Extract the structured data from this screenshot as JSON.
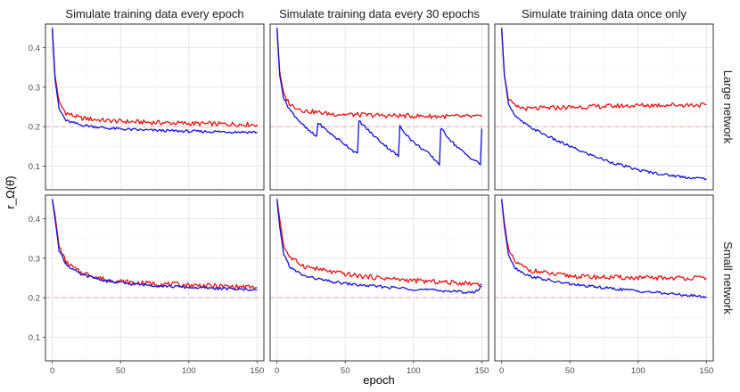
{
  "chart_data": {
    "type": "line",
    "xlabel": "epoch",
    "ylabel": "r_Ω(θ̂)",
    "xlim": [
      -5,
      155
    ],
    "ylim": [
      0.04,
      0.46
    ],
    "x_ticks": [
      0,
      50,
      100,
      150
    ],
    "x_tick_labels": [
      "0",
      "50",
      "100",
      "150"
    ],
    "y_ticks": [
      0.1,
      0.2,
      0.3,
      0.4
    ],
    "y_tick_labels": [
      "0.1",
      "0.2",
      "0.3",
      "0.4"
    ],
    "reference_line": {
      "y": 0.2,
      "color": "#f4a6a6",
      "style": "dashed"
    },
    "col_labels": [
      "Simulate training data every epoch",
      "Simulate training data every 30 epochs",
      "Simulate training data once only"
    ],
    "row_labels": [
      "Large network",
      "Small network"
    ],
    "series_colors": {
      "red": "#ee1111",
      "blue": "#1111dd"
    },
    "panels": [
      {
        "row": 0,
        "col": 0,
        "red": [
          [
            0,
            0.45
          ],
          [
            2,
            0.33
          ],
          [
            5,
            0.26
          ],
          [
            10,
            0.235
          ],
          [
            20,
            0.222
          ],
          [
            40,
            0.215
          ],
          [
            60,
            0.212
          ],
          [
            100,
            0.208
          ],
          [
            150,
            0.205
          ]
        ],
        "blue": [
          [
            0,
            0.45
          ],
          [
            2,
            0.32
          ],
          [
            5,
            0.245
          ],
          [
            10,
            0.215
          ],
          [
            20,
            0.205
          ],
          [
            40,
            0.196
          ],
          [
            60,
            0.192
          ],
          [
            100,
            0.188
          ],
          [
            150,
            0.186
          ]
        ]
      },
      {
        "row": 0,
        "col": 1,
        "red": [
          [
            0,
            0.45
          ],
          [
            2,
            0.34
          ],
          [
            5,
            0.28
          ],
          [
            10,
            0.255
          ],
          [
            20,
            0.24
          ],
          [
            40,
            0.232
          ],
          [
            80,
            0.228
          ],
          [
            120,
            0.226
          ],
          [
            150,
            0.225
          ]
        ],
        "blue": [
          [
            0,
            0.45
          ],
          [
            2,
            0.33
          ],
          [
            5,
            0.27
          ],
          [
            10,
            0.24
          ],
          [
            15,
            0.22
          ],
          [
            20,
            0.2
          ],
          [
            25,
            0.185
          ],
          [
            29,
            0.175
          ],
          [
            30,
            0.21
          ],
          [
            40,
            0.18
          ],
          [
            50,
            0.155
          ],
          [
            59,
            0.13
          ],
          [
            60,
            0.215
          ],
          [
            70,
            0.18
          ],
          [
            80,
            0.15
          ],
          [
            89,
            0.125
          ],
          [
            90,
            0.2
          ],
          [
            100,
            0.16
          ],
          [
            110,
            0.135
          ],
          [
            119,
            0.105
          ],
          [
            120,
            0.195
          ],
          [
            130,
            0.155
          ],
          [
            140,
            0.125
          ],
          [
            149,
            0.105
          ],
          [
            150,
            0.195
          ]
        ]
      },
      {
        "row": 0,
        "col": 2,
        "red": [
          [
            0,
            0.45
          ],
          [
            2,
            0.33
          ],
          [
            5,
            0.27
          ],
          [
            10,
            0.25
          ],
          [
            20,
            0.245
          ],
          [
            40,
            0.248
          ],
          [
            80,
            0.252
          ],
          [
            120,
            0.255
          ],
          [
            150,
            0.255
          ]
        ],
        "blue": [
          [
            0,
            0.45
          ],
          [
            2,
            0.33
          ],
          [
            5,
            0.26
          ],
          [
            10,
            0.225
          ],
          [
            20,
            0.2
          ],
          [
            40,
            0.165
          ],
          [
            60,
            0.135
          ],
          [
            80,
            0.11
          ],
          [
            100,
            0.09
          ],
          [
            120,
            0.078
          ],
          [
            140,
            0.07
          ],
          [
            150,
            0.068
          ]
        ]
      },
      {
        "row": 1,
        "col": 0,
        "red": [
          [
            0,
            0.45
          ],
          [
            2,
            0.41
          ],
          [
            5,
            0.33
          ],
          [
            10,
            0.29
          ],
          [
            20,
            0.265
          ],
          [
            40,
            0.245
          ],
          [
            60,
            0.238
          ],
          [
            100,
            0.232
          ],
          [
            150,
            0.226
          ]
        ],
        "blue": [
          [
            0,
            0.45
          ],
          [
            2,
            0.4
          ],
          [
            5,
            0.32
          ],
          [
            10,
            0.285
          ],
          [
            20,
            0.26
          ],
          [
            40,
            0.242
          ],
          [
            60,
            0.234
          ],
          [
            100,
            0.226
          ],
          [
            150,
            0.22
          ]
        ]
      },
      {
        "row": 1,
        "col": 1,
        "red": [
          [
            0,
            0.45
          ],
          [
            2,
            0.4
          ],
          [
            5,
            0.33
          ],
          [
            10,
            0.3
          ],
          [
            20,
            0.28
          ],
          [
            40,
            0.265
          ],
          [
            60,
            0.255
          ],
          [
            100,
            0.243
          ],
          [
            150,
            0.235
          ]
        ],
        "blue": [
          [
            0,
            0.45
          ],
          [
            2,
            0.38
          ],
          [
            5,
            0.31
          ],
          [
            10,
            0.275
          ],
          [
            20,
            0.255
          ],
          [
            40,
            0.24
          ],
          [
            60,
            0.232
          ],
          [
            100,
            0.222
          ],
          [
            145,
            0.213
          ],
          [
            150,
            0.23
          ]
        ]
      },
      {
        "row": 1,
        "col": 2,
        "red": [
          [
            0,
            0.45
          ],
          [
            2,
            0.39
          ],
          [
            5,
            0.32
          ],
          [
            10,
            0.29
          ],
          [
            20,
            0.27
          ],
          [
            40,
            0.258
          ],
          [
            60,
            0.253
          ],
          [
            100,
            0.25
          ],
          [
            150,
            0.25
          ]
        ],
        "blue": [
          [
            0,
            0.45
          ],
          [
            2,
            0.38
          ],
          [
            5,
            0.31
          ],
          [
            10,
            0.275
          ],
          [
            20,
            0.255
          ],
          [
            40,
            0.24
          ],
          [
            60,
            0.23
          ],
          [
            100,
            0.217
          ],
          [
            150,
            0.202
          ]
        ]
      }
    ]
  }
}
